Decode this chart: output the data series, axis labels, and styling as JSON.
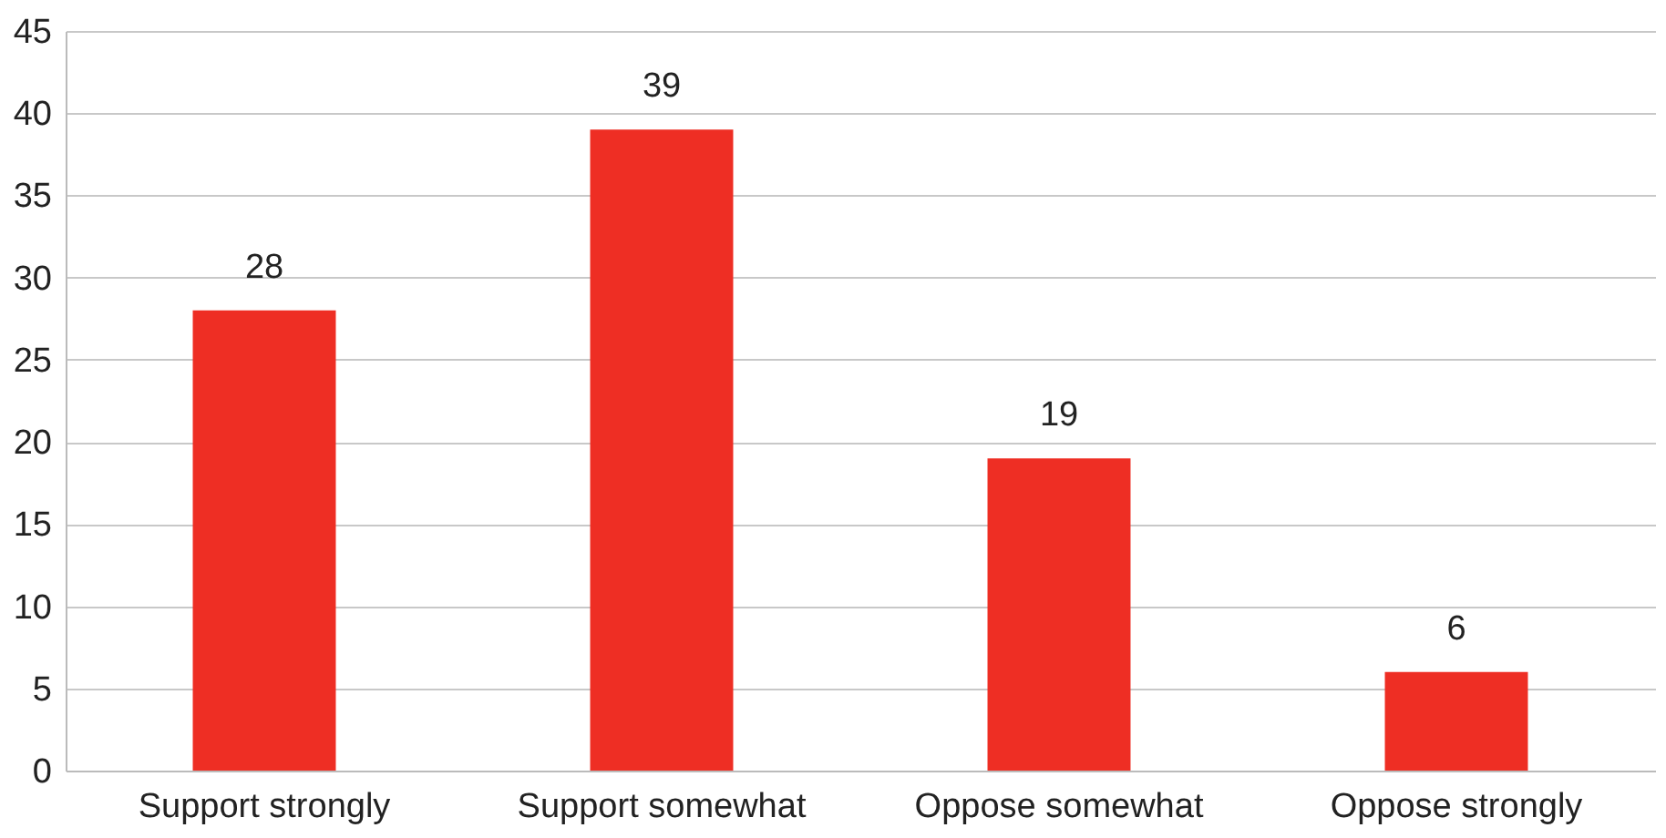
{
  "chart_data": {
    "type": "bar",
    "categories": [
      "Support strongly",
      "Support somewhat",
      "Oppose somewhat",
      "Oppose strongly"
    ],
    "values": [
      28,
      39,
      19,
      6
    ],
    "color": "#ee2e24",
    "ylim": [
      0,
      45
    ],
    "yticks": [
      0,
      5,
      10,
      15,
      20,
      25,
      30,
      35,
      40,
      45
    ],
    "grid": "y",
    "data_labels": true
  }
}
